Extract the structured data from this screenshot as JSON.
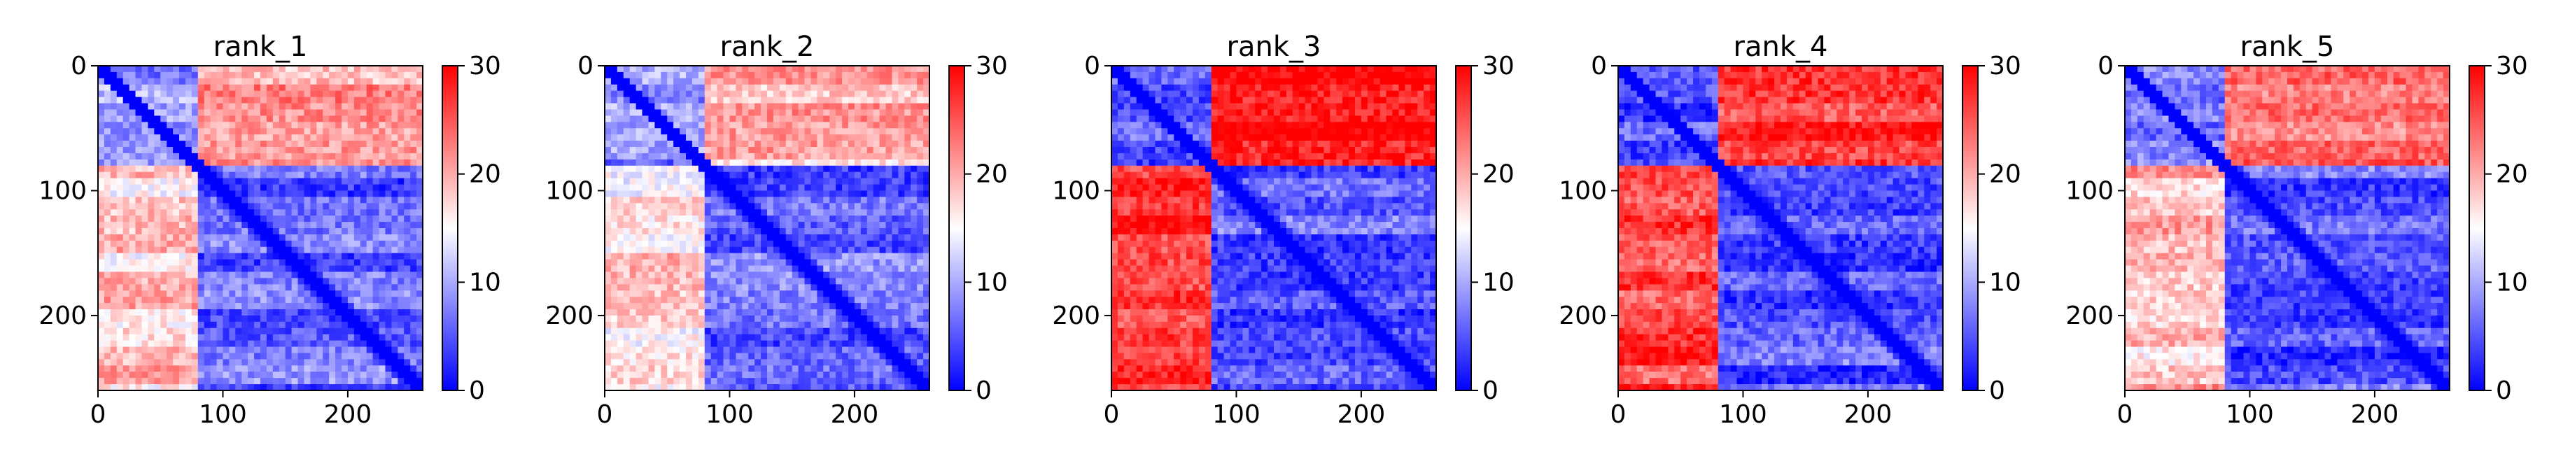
{
  "chart_data": [
    {
      "type": "heatmap",
      "title": "rank_1",
      "xlim": [
        0,
        260
      ],
      "ylim": [
        0,
        260
      ],
      "xticks": [
        "0",
        "100",
        "200"
      ],
      "yticks": [
        "0",
        "100",
        "200"
      ],
      "colorbar": {
        "min": 0,
        "max": 30,
        "ticks": [
          "0",
          "10",
          "20",
          "30"
        ],
        "colormap": "bwr"
      },
      "block_boundary": 82,
      "block_values": {
        "top_left": 8,
        "top_right": 20,
        "bottom_left": 18,
        "bottom_right": 6
      }
    },
    {
      "type": "heatmap",
      "title": "rank_2",
      "xlim": [
        0,
        260
      ],
      "ylim": [
        0,
        260
      ],
      "xticks": [
        "0",
        "100",
        "200"
      ],
      "yticks": [
        "0",
        "100",
        "200"
      ],
      "colorbar": {
        "min": 0,
        "max": 30,
        "ticks": [
          "0",
          "10",
          "20",
          "30"
        ],
        "colormap": "bwr"
      },
      "block_boundary": 82,
      "block_values": {
        "top_left": 8,
        "top_right": 19,
        "bottom_left": 17,
        "bottom_right": 6
      }
    },
    {
      "type": "heatmap",
      "title": "rank_3",
      "xlim": [
        0,
        260
      ],
      "ylim": [
        0,
        260
      ],
      "xticks": [
        "0",
        "100",
        "200"
      ],
      "yticks": [
        "0",
        "100",
        "200"
      ],
      "colorbar": {
        "min": 0,
        "max": 30,
        "ticks": [
          "0",
          "10",
          "20",
          "30"
        ],
        "colormap": "bwr"
      },
      "block_boundary": 82,
      "block_values": {
        "top_left": 5,
        "top_right": 29,
        "bottom_left": 27,
        "bottom_right": 5
      }
    },
    {
      "type": "heatmap",
      "title": "rank_4",
      "xlim": [
        0,
        260
      ],
      "ylim": [
        0,
        260
      ],
      "xticks": [
        "0",
        "100",
        "200"
      ],
      "yticks": [
        "0",
        "100",
        "200"
      ],
      "colorbar": {
        "min": 0,
        "max": 30,
        "ticks": [
          "0",
          "10",
          "20",
          "30"
        ],
        "colormap": "bwr"
      },
      "block_boundary": 82,
      "block_values": {
        "top_left": 5,
        "top_right": 27,
        "bottom_left": 26,
        "bottom_right": 5
      }
    },
    {
      "type": "heatmap",
      "title": "rank_5",
      "xlim": [
        0,
        260
      ],
      "ylim": [
        0,
        260
      ],
      "xticks": [
        "0",
        "100",
        "200"
      ],
      "yticks": [
        "0",
        "100",
        "200"
      ],
      "colorbar": {
        "min": 0,
        "max": 30,
        "ticks": [
          "0",
          "10",
          "20",
          "30"
        ],
        "colormap": "bwr"
      },
      "block_boundary": 82,
      "block_values": {
        "top_left": 6,
        "top_right": 22,
        "bottom_left": 19,
        "bottom_right": 5
      }
    }
  ]
}
